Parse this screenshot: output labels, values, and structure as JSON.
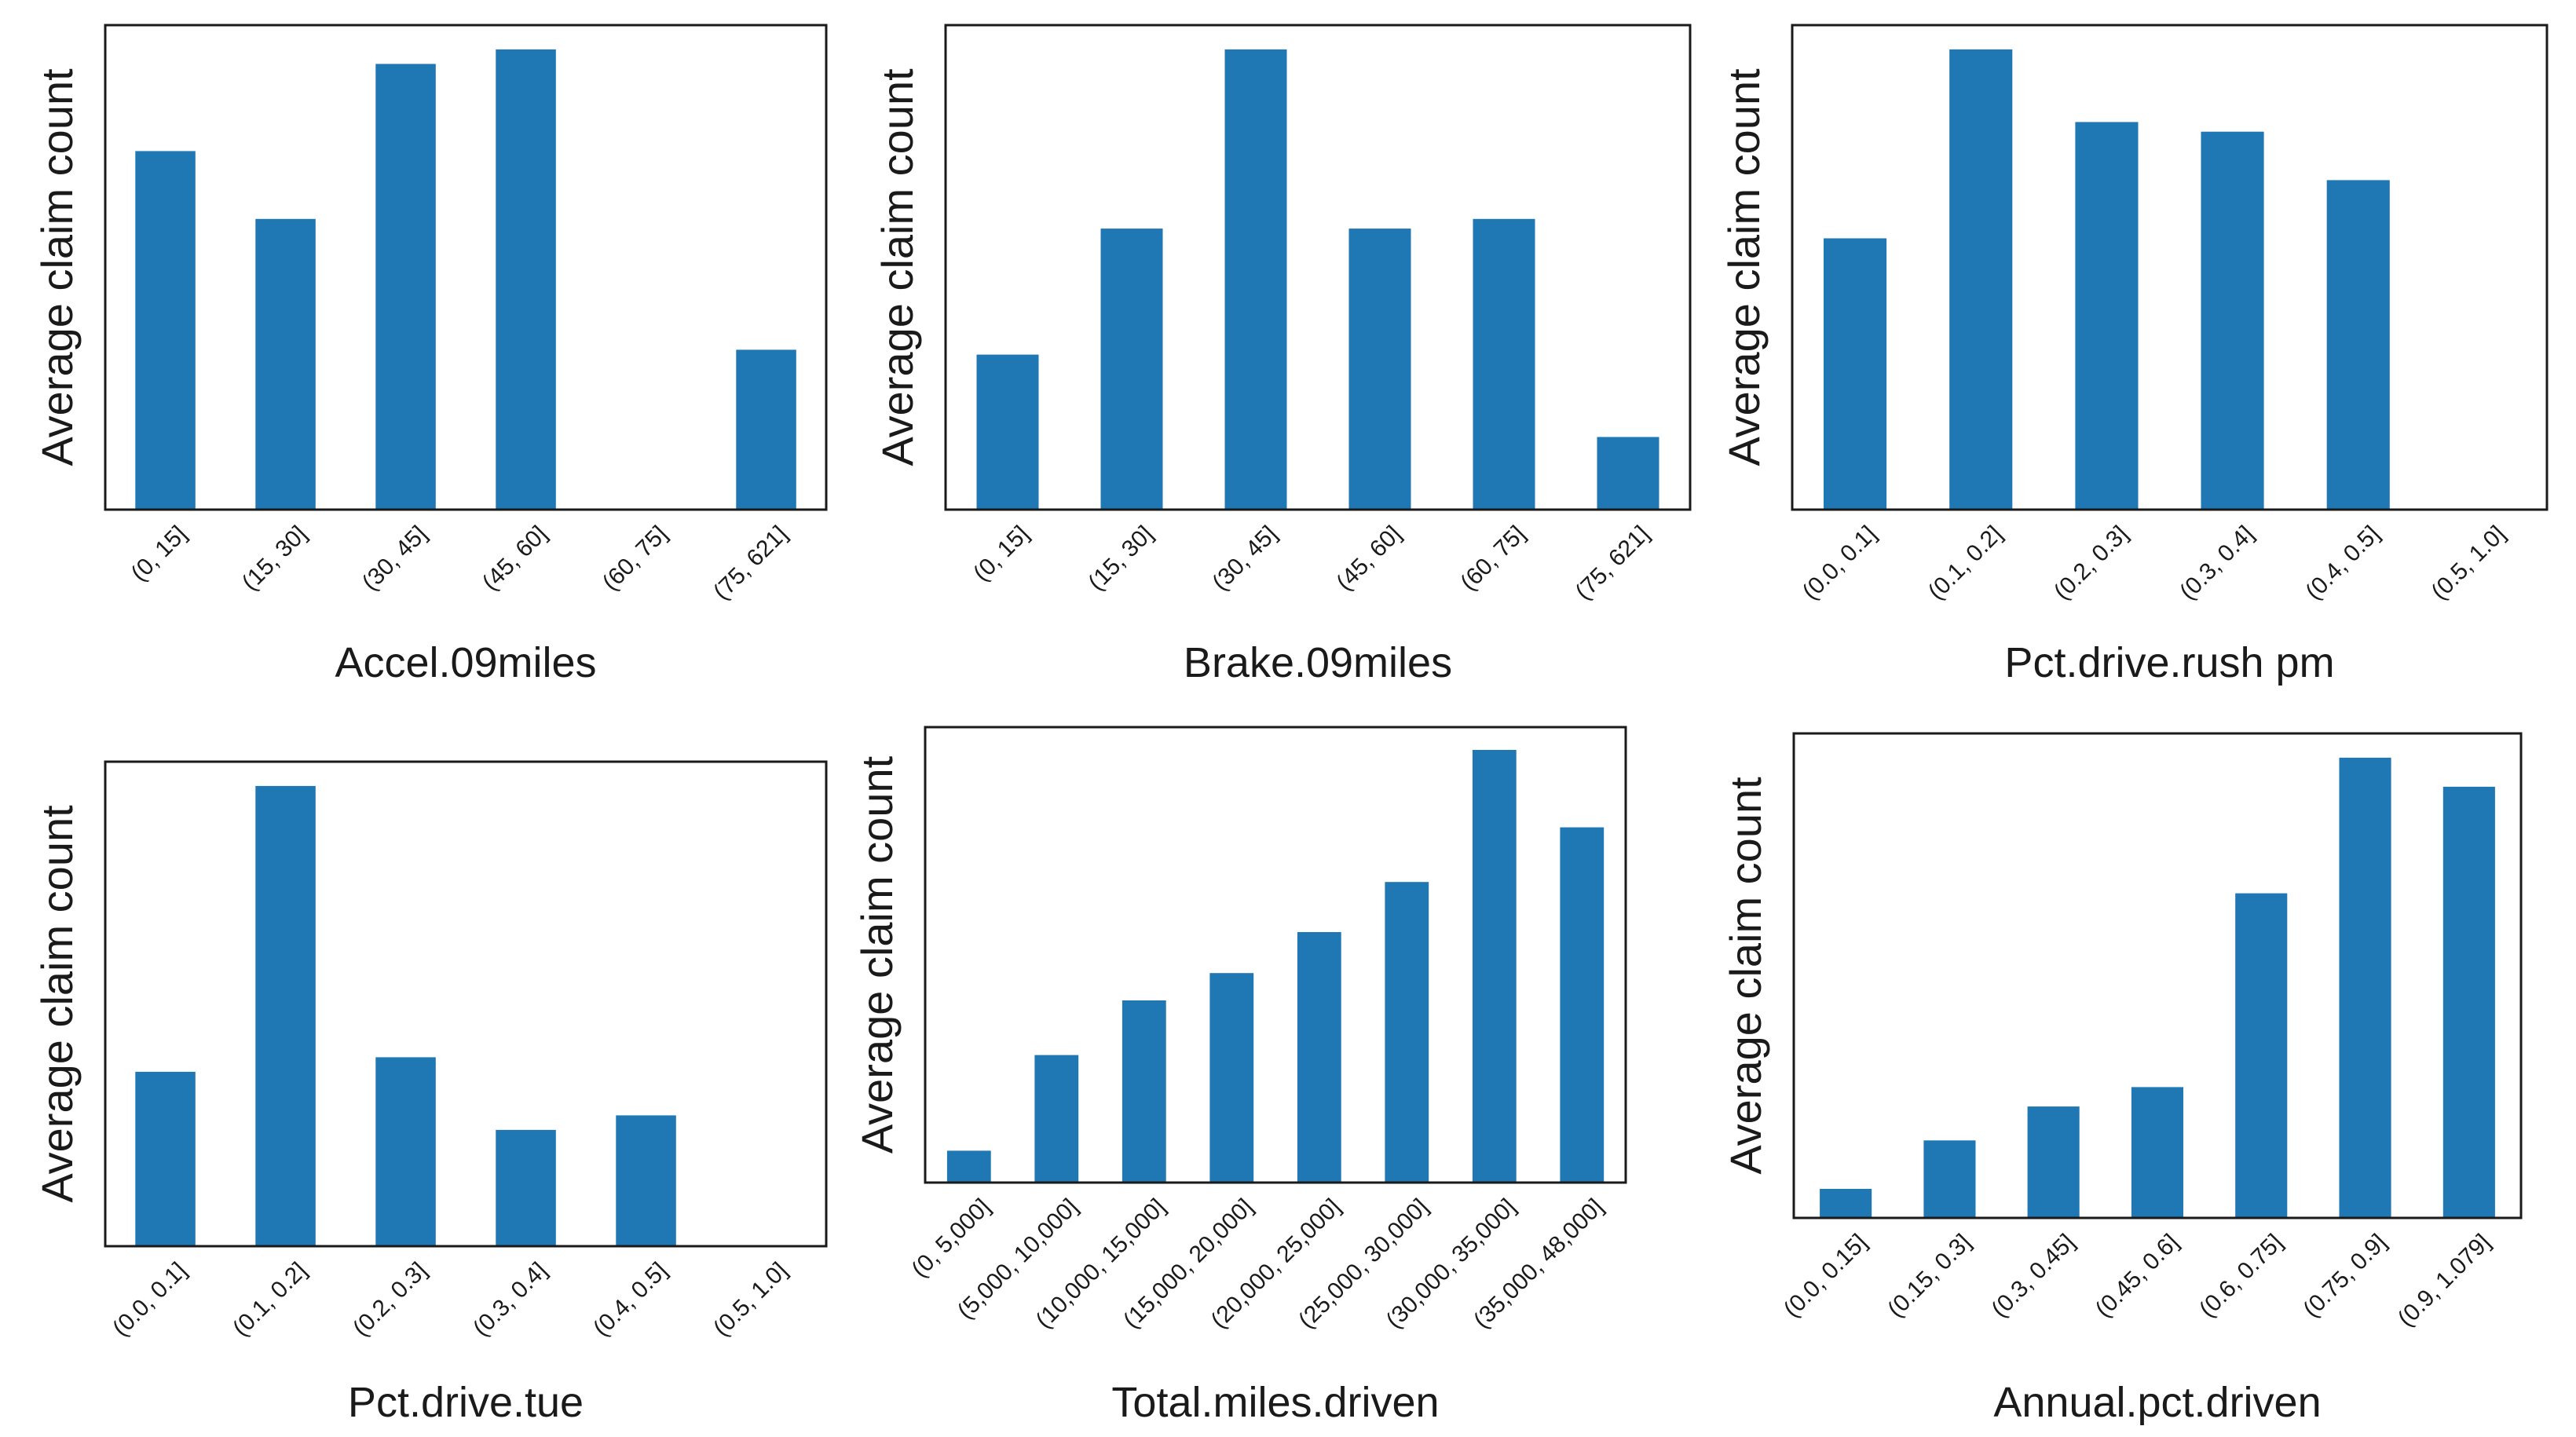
{
  "colors": {
    "bar": "#1f77b4",
    "frame": "#1a1a1a",
    "background": "#ffffff"
  },
  "chart_data": [
    {
      "type": "bar",
      "title": "",
      "xlabel": "Accel.09miles",
      "ylabel": "Average claim count",
      "categories": [
        "(0, 15]",
        "(15, 30]",
        "(30, 45]",
        "(45, 60]",
        "(60, 75]",
        "(75, 621]"
      ],
      "values": [
        0.74,
        0.6,
        0.92,
        0.95,
        0,
        0.33
      ],
      "ylim": [
        0,
        1
      ],
      "yticks_shown": false,
      "grid": false
    },
    {
      "type": "bar",
      "title": "",
      "xlabel": "Brake.09miles",
      "ylabel": "Average claim count",
      "categories": [
        "(0, 15]",
        "(15, 30]",
        "(30, 45]",
        "(45, 60]",
        "(60, 75]",
        "(75, 621]"
      ],
      "values": [
        0.32,
        0.58,
        0.95,
        0.58,
        0.6,
        0.15
      ],
      "ylim": [
        0,
        1
      ],
      "yticks_shown": false,
      "grid": false
    },
    {
      "type": "bar",
      "title": "",
      "xlabel": "Pct.drive.rush pm",
      "ylabel": "Average claim count",
      "categories": [
        "(0.0, 0.1]",
        "(0.1, 0.2]",
        "(0.2, 0.3]",
        "(0.3, 0.4]",
        "(0.4, 0.5]",
        "(0.5, 1.0]"
      ],
      "values": [
        0.56,
        0.95,
        0.8,
        0.78,
        0.68,
        0
      ],
      "ylim": [
        0,
        1
      ],
      "yticks_shown": false,
      "grid": false
    },
    {
      "type": "bar",
      "title": "",
      "xlabel": "Pct.drive.tue",
      "ylabel": "Average claim count",
      "categories": [
        "(0.0, 0.1]",
        "(0.1, 0.2]",
        "(0.2, 0.3]",
        "(0.3, 0.4]",
        "(0.4, 0.5]",
        "(0.5, 1.0]"
      ],
      "values": [
        0.36,
        0.95,
        0.39,
        0.24,
        0.27,
        0
      ],
      "ylim": [
        0,
        1
      ],
      "yticks_shown": false,
      "grid": false
    },
    {
      "type": "bar",
      "title": "",
      "xlabel": "Total.miles.driven",
      "ylabel": "Average claim count",
      "categories": [
        "(0, 5,000]",
        "(5,000, 10,000]",
        "(10,000, 15,000]",
        "(15,000, 20,000]",
        "(20,000, 25,000]",
        "(25,000, 30,000]",
        "(30,000, 35,000]",
        "(35,000, 48,000]"
      ],
      "values": [
        0.07,
        0.28,
        0.4,
        0.46,
        0.55,
        0.66,
        0.95,
        0.78
      ],
      "ylim": [
        0,
        1
      ],
      "yticks_shown": false,
      "grid": false
    },
    {
      "type": "bar",
      "title": "",
      "xlabel": "Annual.pct.driven",
      "ylabel": "Average claim count",
      "categories": [
        "(0.0, 0.15]",
        "(0.15, 0.3]",
        "(0.3, 0.45]",
        "(0.45, 0.6]",
        "(0.6, 0.75]",
        "(0.75, 0.9]",
        "(0.9, 1.079]"
      ],
      "values": [
        0.06,
        0.16,
        0.23,
        0.27,
        0.67,
        0.95,
        0.89
      ],
      "ylim": [
        0,
        1
      ],
      "yticks_shown": false,
      "grid": false
    }
  ]
}
